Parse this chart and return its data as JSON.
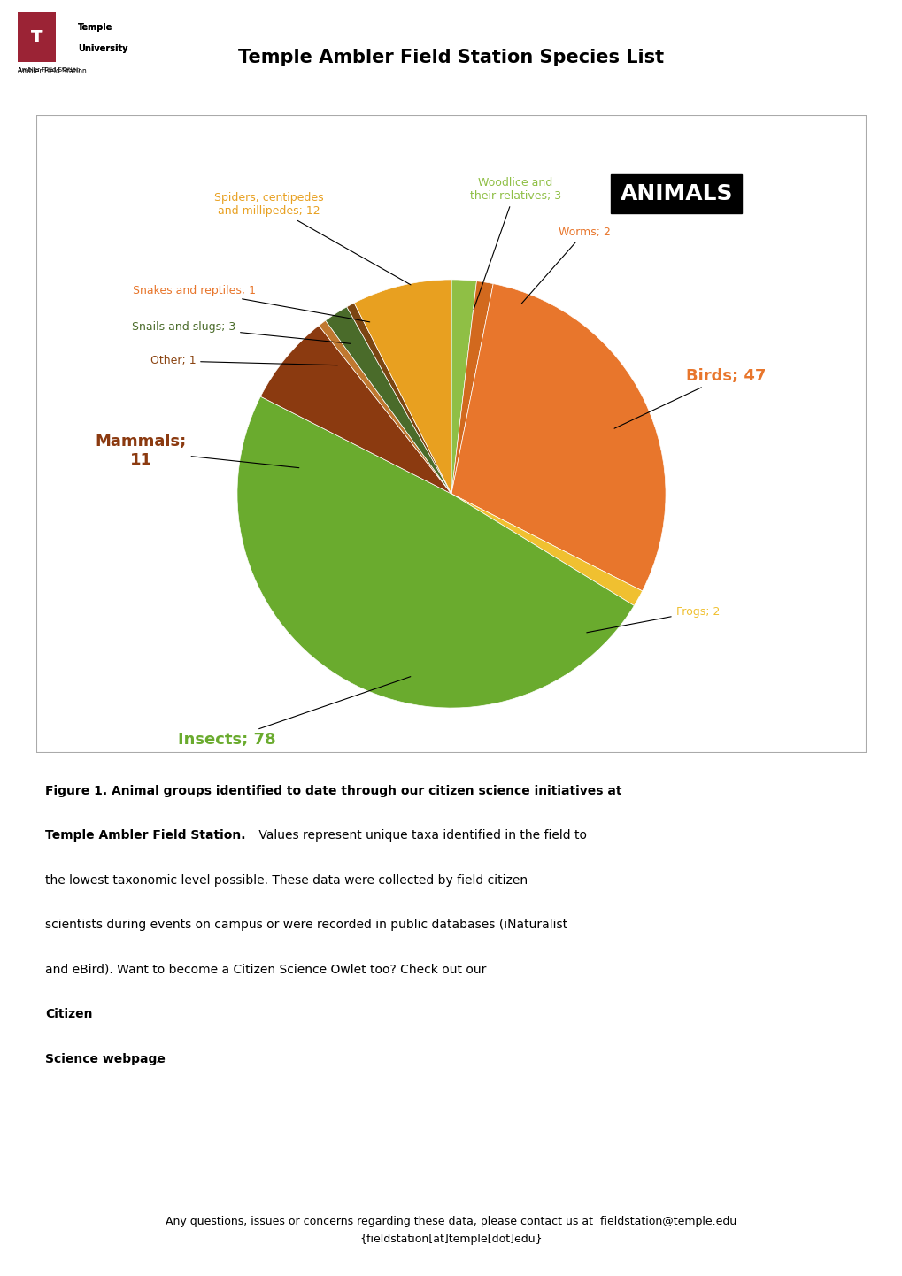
{
  "title": "Temple Ambler Field Station Species List",
  "categories": [
    "Birds",
    "Insects",
    "Spiders, centipedes\nand millipedes",
    "Mammals",
    "Worms",
    "Woodlice and\ntheir relatives",
    "Frogs",
    "Snakes and reptiles",
    "Snails and slugs",
    "Other"
  ],
  "labels_display": [
    "Birds; 47",
    "Insects; 78",
    "Spiders, centipedes\nand millipedes; 12",
    "Mammals;\n11",
    "Worms; 2",
    "Woodlice and\ntheir relatives; 3",
    "Frogs; 2",
    "Snakes and reptiles; 1",
    "Snails and slugs; 3",
    "Other; 1"
  ],
  "values": [
    47,
    78,
    12,
    11,
    2,
    3,
    2,
    1,
    3,
    1
  ],
  "colors": [
    "#E8762C",
    "#6AAB2E",
    "#E8A020",
    "#8B4513",
    "#E8762C",
    "#8FBC45",
    "#F0C020",
    "#8B4513",
    "#4A6B2A",
    "#C0783A"
  ],
  "pie_colors": [
    "#E8762C",
    "#6AAB2E",
    "#E8A020",
    "#8B3A10",
    "#D2691E",
    "#8FBF45",
    "#F0C030",
    "#7B4F1A",
    "#4A6B2A",
    "#C07830"
  ],
  "label_colors": [
    "#E8762C",
    "#6AAB2E",
    "#E8A020",
    "#8B3A10",
    "#E8762C",
    "#8FBF45",
    "#F0C030",
    "#E8762C",
    "#3A5A1A",
    "#8B4513"
  ],
  "figure_caption_bold": "Figure 1. Animal groups identified to date through our citizen science initiatives at Temple Ambler Field Station.",
  "figure_caption_normal": " Values represent unique taxa identified in the field to the lowest taxonomic level possible. These data were collected by field citizen scientists during events on campus or were recorded in public databases (iNaturalist and eBird). Want to become a Citizen Science Owlet too? Check out our ",
  "figure_caption_bold2": "Citizen\nScience webpage",
  "footer": "Any questions, issues or concerns regarding these data, please contact us at ",
  "footer_bold": "fieldstation@temple.edu",
  "footer2": "{fieldstation[at]temple[dot]edu}",
  "background_color": "#FFFFFF",
  "box_background": "#FFFFFF"
}
